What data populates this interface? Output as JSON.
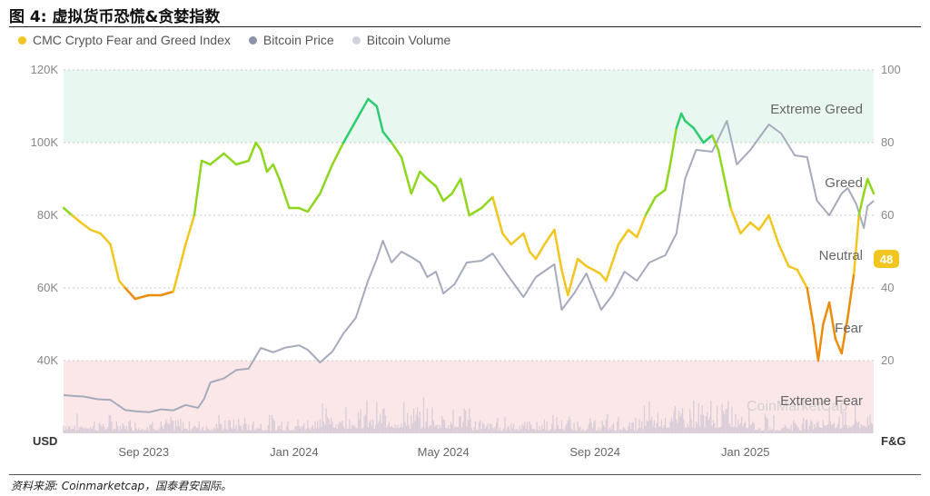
{
  "figure": {
    "title": "图 4:  虚拟货币恐慌&贪婪指数",
    "source": "资料来源:  Coinmarketcap，国泰君安国际。"
  },
  "legend": [
    {
      "label": "CMC Crypto Fear and Greed Index",
      "color": "#f2c61f"
    },
    {
      "label": "Bitcoin Price",
      "color": "#8d93a8"
    },
    {
      "label": "Bitcoin Volume",
      "color": "#d0d2dc"
    }
  ],
  "colors": {
    "extreme_greed_band": "#e8f8f0",
    "extreme_fear_band": "#fbe7e7",
    "extreme_greed": "#2ecc71",
    "greed": "#8fd61f",
    "neutral": "#f2c61f",
    "fear": "#ec8c0c",
    "extreme_fear": "#e8394b",
    "price": "#a5aabd",
    "volume": "#d8cdd8",
    "grid": "#c8c8c8"
  },
  "chart_data": {
    "type": "line",
    "left_axis_label": "USD",
    "right_axis_label": "F&G",
    "left_ticks": [
      "120K",
      "100K",
      "80K",
      "60K",
      "40K"
    ],
    "left_tick_values": [
      120000,
      100000,
      80000,
      60000,
      40000
    ],
    "left_range": [
      20000,
      120000
    ],
    "right_ticks": [
      "100",
      "80",
      "60",
      "40",
      "20"
    ],
    "right_tick_values": [
      100,
      80,
      60,
      40,
      20
    ],
    "right_range": [
      0,
      100
    ],
    "x_ticks": [
      "Sep 2023",
      "Jan 2024",
      "May 2024",
      "Sep 2024",
      "Jan 2025"
    ],
    "x_tick_dates": [
      "2023-09-01",
      "2024-01-01",
      "2024-05-01",
      "2024-09-01",
      "2025-01-01"
    ],
    "x_range": [
      "2023-06-28",
      "2025-04-15"
    ],
    "zones": [
      {
        "label": "Extreme Greed",
        "min": 80,
        "max": 100
      },
      {
        "label": "Greed",
        "value": 61
      },
      {
        "label": "Neutral",
        "value": 41
      },
      {
        "label": "Fear",
        "value": 21
      },
      {
        "label": "Extreme Fear",
        "min": 0,
        "max": 20
      }
    ],
    "current_value": "48",
    "watermark": "CoinMarketCap",
    "series": [
      {
        "name": "CMC Crypto Fear and Greed Index",
        "x": [
          "2023-06-28",
          "2023-07-05",
          "2023-07-12",
          "2023-07-20",
          "2023-07-28",
          "2023-08-05",
          "2023-08-12",
          "2023-08-17",
          "2023-08-25",
          "2023-09-05",
          "2023-09-15",
          "2023-09-25",
          "2023-10-05",
          "2023-10-12",
          "2023-10-18",
          "2023-10-25",
          "2023-11-05",
          "2023-11-15",
          "2023-11-25",
          "2023-12-01",
          "2023-12-05",
          "2023-12-10",
          "2023-12-15",
          "2023-12-20",
          "2023-12-28",
          "2024-01-05",
          "2024-01-12",
          "2024-01-22",
          "2024-02-01",
          "2024-02-10",
          "2024-02-20",
          "2024-03-01",
          "2024-03-08",
          "2024-03-13",
          "2024-03-20",
          "2024-03-28",
          "2024-04-05",
          "2024-04-12",
          "2024-04-18",
          "2024-04-25",
          "2024-05-01",
          "2024-05-08",
          "2024-05-15",
          "2024-05-22",
          "2024-06-01",
          "2024-06-10",
          "2024-06-18",
          "2024-06-25",
          "2024-07-05",
          "2024-07-10",
          "2024-07-15",
          "2024-07-22",
          "2024-07-30",
          "2024-08-05",
          "2024-08-10",
          "2024-08-18",
          "2024-08-25",
          "2024-09-05",
          "2024-09-10",
          "2024-09-20",
          "2024-09-28",
          "2024-10-05",
          "2024-10-12",
          "2024-10-20",
          "2024-10-28",
          "2024-11-01",
          "2024-11-06",
          "2024-11-10",
          "2024-11-13",
          "2024-11-20",
          "2024-11-28",
          "2024-12-05",
          "2024-12-10",
          "2024-12-15",
          "2024-12-20",
          "2024-12-28",
          "2025-01-05",
          "2025-01-12",
          "2025-01-20",
          "2025-01-28",
          "2025-02-05",
          "2025-02-12",
          "2025-02-20",
          "2025-02-25",
          "2025-03-01",
          "2025-03-05",
          "2025-03-10",
          "2025-03-15",
          "2025-03-20",
          "2025-03-25",
          "2025-03-30",
          "2025-04-03",
          "2025-04-07",
          "2025-04-10",
          "2025-04-15"
        ],
        "y": [
          62,
          60,
          58,
          56,
          55,
          52,
          42,
          40,
          37,
          38,
          38,
          39,
          52,
          60,
          75,
          74,
          77,
          74,
          75,
          80,
          78,
          72,
          74,
          70,
          62,
          62,
          61,
          66,
          74,
          80,
          86,
          92,
          90,
          83,
          80,
          76,
          66,
          72,
          70,
          68,
          64,
          66,
          70,
          60,
          62,
          65,
          55,
          52,
          55,
          50,
          48,
          52,
          56,
          45,
          38,
          48,
          46,
          44,
          42,
          52,
          56,
          54,
          60,
          65,
          67,
          74,
          84,
          88,
          86,
          84,
          80,
          82,
          78,
          70,
          62,
          55,
          58,
          56,
          60,
          52,
          46,
          45,
          40,
          30,
          20,
          30,
          36,
          26,
          22,
          32,
          44,
          60,
          66,
          70,
          66
        ]
      },
      {
        "name": "Bitcoin Price",
        "x": [
          "2023-06-28",
          "2023-07-05",
          "2023-07-15",
          "2023-07-25",
          "2023-08-05",
          "2023-08-17",
          "2023-08-25",
          "2023-09-05",
          "2023-09-15",
          "2023-09-25",
          "2023-10-05",
          "2023-10-15",
          "2023-10-20",
          "2023-10-25",
          "2023-11-05",
          "2023-11-15",
          "2023-11-25",
          "2023-12-05",
          "2023-12-15",
          "2023-12-25",
          "2024-01-05",
          "2024-01-12",
          "2024-01-22",
          "2024-02-01",
          "2024-02-10",
          "2024-02-20",
          "2024-03-01",
          "2024-03-08",
          "2024-03-13",
          "2024-03-20",
          "2024-03-28",
          "2024-04-05",
          "2024-04-12",
          "2024-04-18",
          "2024-04-25",
          "2024-05-01",
          "2024-05-10",
          "2024-05-20",
          "2024-06-01",
          "2024-06-10",
          "2024-06-20",
          "2024-07-05",
          "2024-07-15",
          "2024-07-30",
          "2024-08-05",
          "2024-08-15",
          "2024-08-25",
          "2024-09-06",
          "2024-09-15",
          "2024-09-25",
          "2024-10-05",
          "2024-10-15",
          "2024-10-28",
          "2024-11-06",
          "2024-11-13",
          "2024-11-22",
          "2024-12-05",
          "2024-12-17",
          "2024-12-25",
          "2025-01-05",
          "2025-01-20",
          "2025-01-30",
          "2025-02-10",
          "2025-02-20",
          "2025-02-28",
          "2025-03-10",
          "2025-03-20",
          "2025-03-25",
          "2025-04-01",
          "2025-04-07",
          "2025-04-10",
          "2025-04-15"
        ],
        "y": [
          30500,
          30300,
          30100,
          29400,
          29200,
          26400,
          26100,
          25800,
          26600,
          26300,
          27800,
          27000,
          29500,
          34000,
          35100,
          37400,
          37800,
          43500,
          42300,
          43600,
          44200,
          43000,
          39500,
          42500,
          47500,
          51800,
          62000,
          68000,
          73000,
          67000,
          70000,
          68500,
          67000,
          63000,
          64500,
          58500,
          61000,
          67000,
          67500,
          69500,
          64500,
          57500,
          63000,
          66500,
          54000,
          58500,
          64000,
          54000,
          58000,
          64500,
          62000,
          67000,
          69000,
          75000,
          90000,
          98000,
          97500,
          106000,
          94000,
          98000,
          105000,
          102500,
          96500,
          96000,
          84000,
          80000,
          86000,
          87500,
          83000,
          76500,
          82500,
          84000
        ]
      }
    ],
    "volume_range": [
      0,
      80
    ]
  }
}
